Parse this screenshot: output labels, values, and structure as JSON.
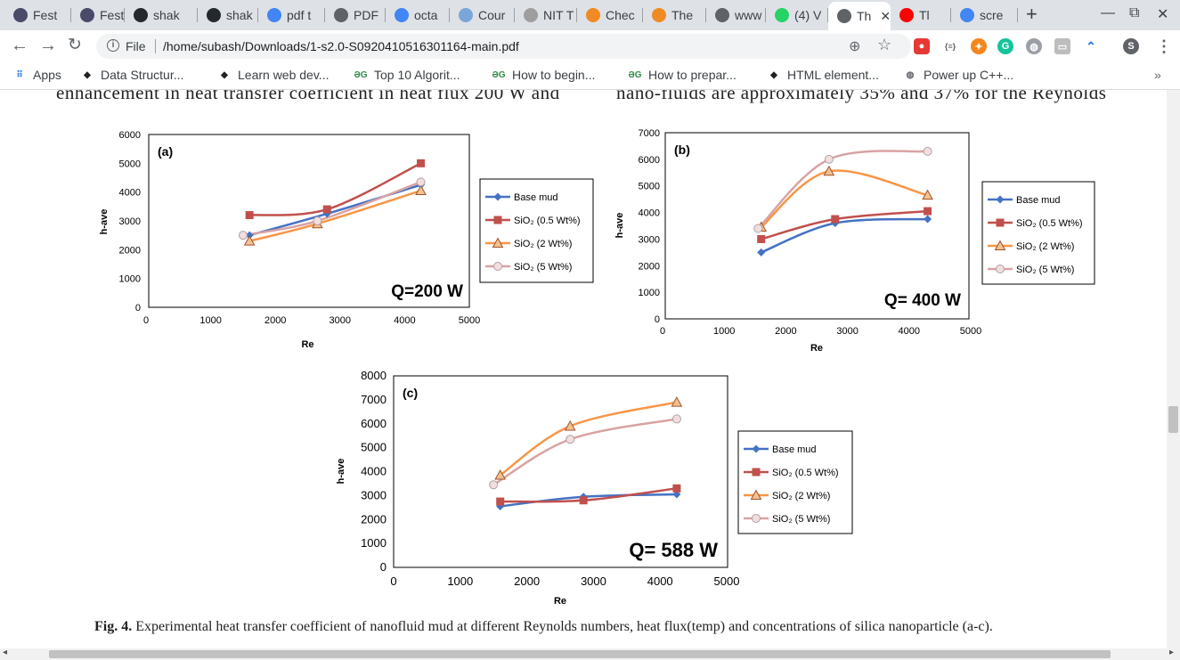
{
  "browser": {
    "tabs": [
      {
        "title": "Fest",
        "icon": "festival-icon",
        "color": "#4a4a6a",
        "active": false
      },
      {
        "title": "Fest",
        "icon": "festival-icon",
        "color": "#4a4a6a",
        "active": false
      },
      {
        "title": "shak",
        "icon": "github-icon",
        "color": "#24292e",
        "active": false
      },
      {
        "title": "shak",
        "icon": "github-icon",
        "color": "#24292e",
        "active": false
      },
      {
        "title": "pdf t",
        "icon": "google-icon",
        "color": "#4285f4",
        "active": false
      },
      {
        "title": "PDF",
        "icon": "document-icon",
        "color": "#5f6368",
        "active": false
      },
      {
        "title": "octa",
        "icon": "google-icon",
        "color": "#4285f4",
        "active": false
      },
      {
        "title": "Cour",
        "icon": "coursera-icon",
        "color": "#7aa6d9",
        "active": false
      },
      {
        "title": "NIT T",
        "icon": "college-icon",
        "color": "#9e9e9e",
        "active": false
      },
      {
        "title": "Chec",
        "icon": "e-icon",
        "color": "#f08a24",
        "active": false
      },
      {
        "title": "The",
        "icon": "e-icon",
        "color": "#f08a24",
        "active": false
      },
      {
        "title": "www",
        "icon": "globe-icon",
        "color": "#5f6368",
        "active": false
      },
      {
        "title": "(4) V",
        "icon": "whatsapp-icon",
        "color": "#25d366",
        "active": false
      },
      {
        "title": "Th",
        "icon": "globe-icon",
        "color": "#5f6368",
        "active": true
      },
      {
        "title": "Tl",
        "icon": "youtube-icon",
        "color": "#ff0000",
        "active": false
      },
      {
        "title": "scre",
        "icon": "google-icon",
        "color": "#4285f4",
        "active": false
      }
    ],
    "tab_close": "✕",
    "new_tab": "+",
    "window_minimize": "—",
    "window_restore": "⧉",
    "window_close": "✕",
    "file_label": "File",
    "url": "/home/subash/Downloads/1-s2.0-S0920410516301164-main.pdf",
    "bookmarks": [
      {
        "label": "Apps",
        "icon": "apps-grid-icon"
      },
      {
        "label": "Data Structur...",
        "icon": "bookmark-icon"
      },
      {
        "label": "Learn web dev...",
        "icon": "bookmark-icon"
      },
      {
        "label": "Top 10 Algorit...",
        "icon": "geeks-icon"
      },
      {
        "label": "How to begin...",
        "icon": "geeks-icon"
      },
      {
        "label": "How to prepar...",
        "icon": "geeks-icon"
      },
      {
        "label": "HTML element...",
        "icon": "bookmark-icon"
      },
      {
        "label": "Power up C++...",
        "icon": "globe-icon"
      }
    ],
    "bookmarks_more": "»",
    "profile_initial": "S"
  },
  "document": {
    "cut_text_left": "enhancement in heat transfer coefficient in heat flux 200 W and",
    "cut_text_right": "nano-fluids are approximately 35% and 37% for the Reynolds",
    "caption_label": "Fig. 4.",
    "caption_text": "Experimental heat transfer coefficient of nanofluid mud at different Reynolds numbers, heat flux(temp) and concentrations of silica nanoparticle (a-c)."
  },
  "chart_data": [
    {
      "type": "line",
      "panel": "(a)",
      "annotation": "Q=200 W",
      "xlabel": "Re",
      "ylabel": "h-ave",
      "xlim": [
        0,
        5000
      ],
      "ylim": [
        0,
        6000
      ],
      "xticks": [
        0,
        1000,
        2000,
        3000,
        4000,
        5000
      ],
      "yticks": [
        0,
        1000,
        2000,
        3000,
        4000,
        5000,
        6000
      ],
      "legend_position": "right",
      "series": [
        {
          "name": "Base mud",
          "color": "#4472c4",
          "marker": "diamond",
          "x": [
            1600,
            2800,
            4250
          ],
          "y": [
            2500,
            3250,
            4250
          ]
        },
        {
          "name": "SiO₂ (0.5 Wt%)",
          "color": "#c0504d",
          "marker": "square",
          "x": [
            1600,
            2800,
            4250
          ],
          "y": [
            3200,
            3400,
            5000
          ]
        },
        {
          "name": "SiO₂ (2 Wt%)",
          "color": "#f79646",
          "marker": "triangle",
          "x": [
            1600,
            2650,
            4250
          ],
          "y": [
            2300,
            2900,
            4050
          ]
        },
        {
          "name": "SiO₂ (5 Wt%)",
          "color": "#d9a3a3",
          "marker": "circle",
          "x": [
            1500,
            2650,
            4250
          ],
          "y": [
            2500,
            3000,
            4350
          ]
        }
      ]
    },
    {
      "type": "line",
      "panel": "(b)",
      "annotation": "Q= 400 W",
      "xlabel": "Re",
      "ylabel": "h-ave",
      "xlim": [
        0,
        5000
      ],
      "ylim": [
        0,
        7000
      ],
      "xticks": [
        0,
        1000,
        2000,
        3000,
        4000,
        5000
      ],
      "yticks": [
        0,
        1000,
        2000,
        3000,
        4000,
        5000,
        6000,
        7000
      ],
      "legend_position": "right",
      "series": [
        {
          "name": "Base mud",
          "color": "#4472c4",
          "marker": "diamond",
          "x": [
            1600,
            2800,
            4300
          ],
          "y": [
            2500,
            3600,
            3750
          ]
        },
        {
          "name": "SiO₂ (0.5 Wt%)",
          "color": "#c0504d",
          "marker": "square",
          "x": [
            1600,
            2800,
            4300
          ],
          "y": [
            3000,
            3750,
            4050
          ]
        },
        {
          "name": "SiO₂ (2 Wt%)",
          "color": "#f79646",
          "marker": "triangle",
          "x": [
            1600,
            2700,
            4300
          ],
          "y": [
            3450,
            5550,
            4650
          ]
        },
        {
          "name": "SiO₂ (5 Wt%)",
          "color": "#d9a3a3",
          "marker": "circle",
          "x": [
            1550,
            2700,
            4300
          ],
          "y": [
            3400,
            6000,
            6300
          ]
        }
      ]
    },
    {
      "type": "line",
      "panel": "(c)",
      "annotation": "Q= 588 W",
      "xlabel": "Re",
      "ylabel": "h-ave",
      "xlim": [
        0,
        5000
      ],
      "ylim": [
        0,
        8000
      ],
      "xticks": [
        0,
        1000,
        2000,
        3000,
        4000,
        5000
      ],
      "yticks": [
        0,
        1000,
        2000,
        3000,
        4000,
        5000,
        6000,
        7000,
        8000
      ],
      "legend_position": "right",
      "series": [
        {
          "name": "Base mud",
          "color": "#4472c4",
          "marker": "diamond",
          "x": [
            1600,
            2850,
            4250
          ],
          "y": [
            2550,
            2950,
            3050
          ]
        },
        {
          "name": "SiO₂ (0.5 Wt%)",
          "color": "#c0504d",
          "marker": "square",
          "x": [
            1600,
            2850,
            4250
          ],
          "y": [
            2750,
            2800,
            3300
          ]
        },
        {
          "name": "SiO₂ (2 Wt%)",
          "color": "#f79646",
          "marker": "triangle",
          "x": [
            1600,
            2650,
            4250
          ],
          "y": [
            3850,
            5900,
            6900
          ]
        },
        {
          "name": "SiO₂ (5 Wt%)",
          "color": "#d9a3a3",
          "marker": "circle",
          "x": [
            1500,
            2650,
            4250
          ],
          "y": [
            3450,
            5350,
            6200
          ]
        }
      ]
    }
  ]
}
